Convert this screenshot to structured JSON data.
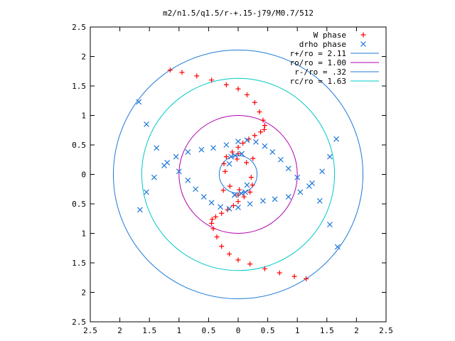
{
  "chart_data": {
    "type": "scatter",
    "title": "m2/n1.5/q1.5/r-+.15-j79/M0.7/512",
    "xlabel": "",
    "ylabel": "",
    "xlim": [
      -2.5,
      2.5
    ],
    "ylim": [
      -2.5,
      2.5
    ],
    "x_ticks": [
      -2.5,
      -2,
      -1.5,
      -1,
      -0.5,
      0,
      0.5,
      1,
      1.5,
      2,
      2.5
    ],
    "x_tick_labels": [
      "2.5",
      "2",
      "1.5",
      "1",
      "0.5",
      "0",
      "0.5",
      "1",
      "1.5",
      "2",
      "2.5"
    ],
    "y_ticks": [
      2.5,
      2,
      1.5,
      1,
      0.5,
      0,
      -0.5,
      -1,
      -1.5,
      -2,
      -2.5
    ],
    "y_tick_labels": [
      "2.5",
      "2",
      "1.5",
      "1",
      "0.5",
      "0",
      "0.5",
      "1",
      "1.5",
      "2",
      "2.5"
    ],
    "grid": false,
    "legend_position": "top-right",
    "series": [
      {
        "name": "W phase",
        "kind": "points",
        "marker": "plus",
        "color": "#ff0000",
        "x": [
          -1.15,
          -0.95,
          -0.7,
          -0.45,
          -0.2,
          0.0,
          0.15,
          0.28,
          0.36,
          0.42,
          0.45,
          0.44,
          0.38,
          0.28,
          0.18,
          0.08,
          0.0,
          -0.1,
          -0.2,
          -0.24,
          -0.22,
          0.0,
          0.14,
          -0.02,
          1.15,
          0.95,
          0.7,
          0.45,
          0.2,
          0.0,
          -0.15,
          -0.28,
          -0.36,
          -0.42,
          -0.45,
          -0.44,
          -0.38,
          -0.28,
          -0.18,
          -0.08,
          0.0,
          0.1,
          0.2,
          0.24,
          0.22,
          0.0,
          -0.14,
          0.02,
          0.25,
          -0.25
        ],
        "y": [
          1.77,
          1.73,
          1.67,
          1.6,
          1.52,
          1.45,
          1.35,
          1.22,
          1.06,
          0.92,
          0.83,
          0.76,
          0.72,
          0.66,
          0.6,
          0.53,
          0.46,
          0.38,
          0.3,
          0.18,
          0.05,
          0.35,
          0.2,
          0.26,
          -1.77,
          -1.73,
          -1.67,
          -1.6,
          -1.52,
          -1.45,
          -1.35,
          -1.22,
          -1.06,
          -0.92,
          -0.83,
          -0.76,
          -0.72,
          -0.66,
          -0.6,
          -0.53,
          -0.46,
          -0.38,
          -0.3,
          -0.18,
          -0.05,
          -0.35,
          -0.2,
          -0.26,
          0.27,
          -0.27
        ]
      },
      {
        "name": "drho phase",
        "kind": "points",
        "marker": "cross",
        "color": "#1f78d8",
        "x": [
          -1.68,
          -1.55,
          -1.38,
          -1.2,
          -1.0,
          -0.85,
          -0.72,
          -0.58,
          -0.45,
          -0.3,
          -0.15,
          0.0,
          0.2,
          0.42,
          0.62,
          0.85,
          1.05,
          1.25,
          1.42,
          1.55,
          1.66,
          0.06,
          -0.06,
          -0.15,
          -0.05,
          0.12,
          1.68,
          1.55,
          1.38,
          1.2,
          1.0,
          0.85,
          0.72,
          0.58,
          0.45,
          0.3,
          0.15,
          0.0,
          -0.2,
          -0.42,
          -0.62,
          -0.85,
          -1.05,
          -1.25,
          -1.42,
          -1.55,
          -1.66,
          -0.06,
          0.06,
          0.15,
          0.05,
          -0.12
        ],
        "y": [
          1.23,
          0.85,
          0.45,
          0.2,
          0.05,
          -0.1,
          -0.25,
          -0.38,
          -0.48,
          -0.55,
          -0.58,
          -0.56,
          -0.5,
          -0.45,
          -0.42,
          -0.38,
          -0.3,
          -0.15,
          0.05,
          0.3,
          0.6,
          0.35,
          -0.35,
          0.18,
          0.32,
          -0.3,
          -1.23,
          -0.85,
          -0.45,
          -0.2,
          -0.05,
          0.1,
          0.25,
          0.38,
          0.48,
          0.55,
          0.58,
          0.56,
          0.5,
          0.45,
          0.42,
          0.38,
          0.3,
          0.15,
          -0.05,
          -0.3,
          -0.6,
          -0.35,
          0.35,
          -0.18,
          -0.32,
          0.3
        ]
      },
      {
        "name": "r+/ro = 2.11",
        "kind": "circle",
        "radius": 2.11,
        "color": "#1f78d8"
      },
      {
        "name": "ro/ro = 1.00",
        "kind": "circle",
        "radius": 1.0,
        "color": "#b000b0"
      },
      {
        "name": "r-/ro = .32",
        "kind": "circle",
        "radius": 0.32,
        "color": "#1f78d8"
      },
      {
        "name": "rc/ro = 1.63",
        "kind": "circle",
        "radius": 1.63,
        "color": "#00c8c8"
      }
    ]
  }
}
